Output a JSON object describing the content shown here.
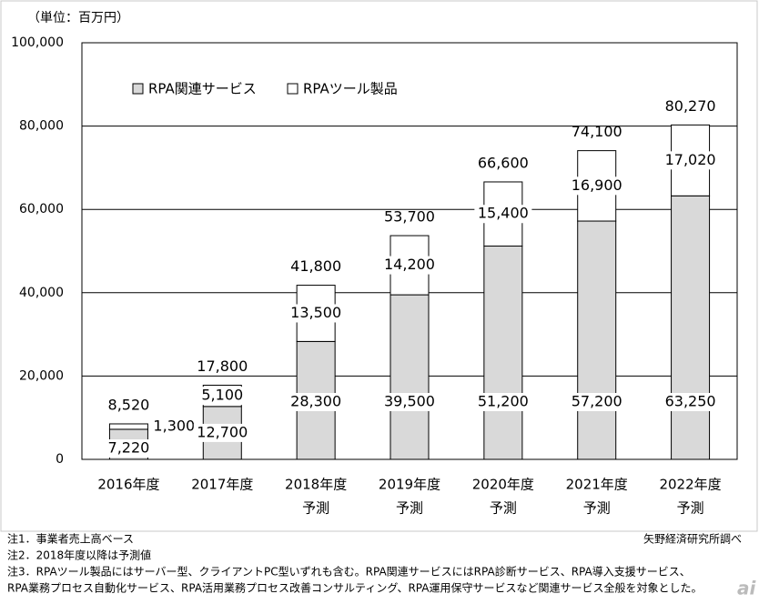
{
  "chart_data": {
    "type": "stacked-bar",
    "unit": "（単位：百万円）",
    "categories": [
      [
        "2016年度"
      ],
      [
        "2017年度"
      ],
      [
        "2018年度",
        "予測"
      ],
      [
        "2019年度",
        "予測"
      ],
      [
        "2020年度",
        "予測"
      ],
      [
        "2021年度",
        "予測"
      ],
      [
        "2022年度",
        "予測"
      ]
    ],
    "series": [
      {
        "name": "RPA関連サービス",
        "color": "#d9d9d9",
        "values": [
          7220,
          12700,
          28300,
          39500,
          51200,
          57200,
          63250
        ],
        "value_labels": [
          "7,220",
          "12,700",
          "28,300",
          "39,500",
          "51,200",
          "57,200",
          "63,250"
        ]
      },
      {
        "name": "RPAツール製品",
        "color": "#ffffff",
        "values": [
          1300,
          5100,
          13500,
          14200,
          15400,
          16900,
          17020
        ],
        "value_labels": [
          "1,300",
          "5,100",
          "13,500",
          "14,200",
          "15,400",
          "16,900",
          "17,020"
        ]
      }
    ],
    "totals": [
      8520,
      17800,
      41800,
      53700,
      66600,
      74100,
      80270
    ],
    "total_labels": [
      "8,520",
      "17,800",
      "41,800",
      "53,700",
      "66,600",
      "74,100",
      "80,270"
    ],
    "ylim": [
      0,
      100000
    ],
    "yticks": [
      0,
      {
        "value": 20000,
        "label": "20,000"
      },
      {
        "value": 40000,
        "label": "40,000"
      },
      {
        "value": 60000,
        "label": "60,000"
      },
      {
        "value": 80000,
        "label": "80,000"
      },
      {
        "value": 100000,
        "label": "100,000"
      }
    ],
    "grid": true,
    "legend": "top-left",
    "notes": [
      "注1．事業者売上高ベース",
      "注2．2018年度以降は予測値",
      "注3．RPAツール製品にはサーバー型、クライアントPC型いずれも含む。RPA関連サービスにはRPA診断サービス、RPA導入支援サービス、",
      "RPA業務プロセス自動化サービス、RPA活用業務プロセス改善コンサルティング、RPA運用保守サービスなど関連サービス全般を対象とした。"
    ],
    "source": "矢野経済研究所調べ",
    "watermark": "ai"
  }
}
